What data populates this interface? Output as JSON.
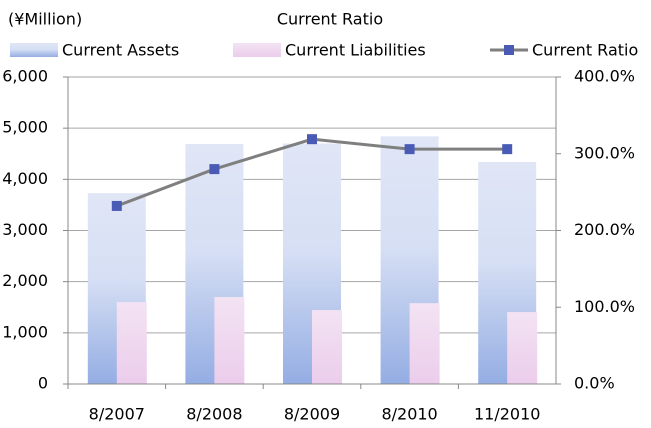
{
  "chart_data": {
    "type": "bar",
    "title": "Current Ratio",
    "y_label": "(¥Million)",
    "categories": [
      "8/2007",
      "8/2008",
      "8/2009",
      "8/2010",
      "11/2010"
    ],
    "series": [
      {
        "name": "Current Assets",
        "type": "bar",
        "color": "#a9bde9",
        "values": [
          3730,
          4690,
          4700,
          4840,
          4340
        ]
      },
      {
        "name": "Current Liabilities",
        "type": "bar",
        "color": "#efd6ef",
        "values": [
          1600,
          1700,
          1445,
          1580,
          1405
        ]
      },
      {
        "name": "Current Ratio",
        "type": "line",
        "axis": "y2",
        "color": "#4a5bb5",
        "values": [
          232,
          280,
          319,
          306,
          306
        ]
      }
    ],
    "ylim": [
      0,
      6000
    ],
    "yticks": [
      0,
      {
        "value": 1000,
        "label": "1,000"
      },
      {
        "value": 2000,
        "label": "2,000"
      },
      {
        "value": 3000,
        "label": "3,000"
      },
      {
        "value": 4000,
        "label": "4,000"
      },
      {
        "value": 5000,
        "label": "5,000"
      },
      {
        "value": 6000,
        "label": "6,000"
      }
    ],
    "y2lim": [
      0,
      400
    ],
    "y2ticks": [
      {
        "value": 0,
        "label": "0.0%"
      },
      {
        "value": 100,
        "label": "100.0%"
      },
      {
        "value": 200,
        "label": "200.0%"
      },
      {
        "value": 300,
        "label": "300.0%"
      },
      {
        "value": 400,
        "label": "400.0%"
      }
    ],
    "grid": true
  }
}
